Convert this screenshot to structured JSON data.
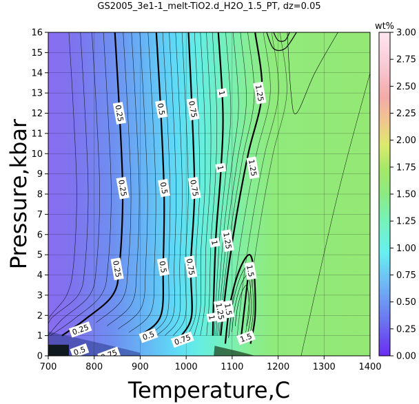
{
  "chart_data": {
    "type": "heatmap",
    "title": "GS2005_3e1-1_melt-TiO2.d_H2O_1.5_PT, dz=0.05",
    "xlabel": "Temperature,C",
    "ylabel": "Pressure,kbar",
    "xlim": [
      700,
      1400
    ],
    "ylim": [
      0,
      16
    ],
    "x_ticks": [
      "700",
      "800",
      "900",
      "1000",
      "1100",
      "1200",
      "1300",
      "1400"
    ],
    "y_ticks": [
      "0",
      "1",
      "2",
      "3",
      "4",
      "5",
      "6",
      "7",
      "8",
      "9",
      "10",
      "11",
      "12",
      "13",
      "14",
      "15",
      "16"
    ],
    "colorbar": {
      "label": "wt%",
      "range": [
        0,
        3
      ],
      "ticks": [
        "0.00",
        "0.25",
        "0.50",
        "0.75",
        "1.00",
        "1.25",
        "1.50",
        "1.75",
        "2.00",
        "2.25",
        "2.50",
        "2.75",
        "3.00"
      ]
    },
    "contour_interval": 0.05,
    "major_contours": [
      {
        "level": "0.25",
        "T_at_P": [
          [
            845,
            16
          ],
          [
            855,
            12
          ],
          [
            862,
            8
          ],
          [
            855,
            4.5
          ],
          [
            840,
            3
          ],
          [
            780,
            1.8
          ],
          [
            730,
            1
          ]
        ]
      },
      {
        "level": "0.5",
        "T_at_P": [
          [
            935,
            16
          ],
          [
            945,
            12
          ],
          [
            952,
            8
          ],
          [
            950,
            4.5
          ],
          [
            945,
            2
          ],
          [
            900,
            1
          ]
        ]
      },
      {
        "level": "0.75",
        "T_at_P": [
          [
            1005,
            16
          ],
          [
            1013,
            12
          ],
          [
            1018,
            8
          ],
          [
            1010,
            4.5
          ],
          [
            1012,
            2
          ],
          [
            990,
            1
          ]
        ]
      },
      {
        "level": "1",
        "T_at_P": [
          [
            1070,
            16
          ],
          [
            1080,
            12
          ],
          [
            1075,
            9
          ],
          [
            1065,
            6
          ],
          [
            1060,
            3
          ],
          [
            1058,
            1
          ]
        ]
      },
      {
        "level": "1.25",
        "T_at_P": [
          [
            1150,
            16
          ],
          [
            1165,
            13
          ],
          [
            1135,
            10
          ],
          [
            1110,
            7
          ],
          [
            1090,
            4
          ],
          [
            1075,
            1
          ]
        ]
      },
      {
        "level": "1.5",
        "T_at_P": [
          [
            1135,
            4
          ],
          [
            1125,
            2
          ],
          [
            1120,
            1
          ]
        ]
      }
    ],
    "contour_labels": [
      {
        "text": "0.25",
        "T": 855,
        "P": 12
      },
      {
        "text": "0.25",
        "T": 862,
        "P": 8.3
      },
      {
        "text": "0.25",
        "T": 850,
        "P": 4.3
      },
      {
        "text": "0.25",
        "T": 770,
        "P": 1.3
      },
      {
        "text": "0.5",
        "T": 946,
        "P": 12.2
      },
      {
        "text": "0.5",
        "T": 952,
        "P": 8.3
      },
      {
        "text": "0.5",
        "T": 950,
        "P": 4.4
      },
      {
        "text": "0.5",
        "T": 918,
        "P": 1.0
      },
      {
        "text": "0.5",
        "T": 768,
        "P": 0.25
      },
      {
        "text": "0.75",
        "T": 1015,
        "P": 12.2
      },
      {
        "text": "0.75",
        "T": 1018,
        "P": 8.3
      },
      {
        "text": "0.75",
        "T": 1010,
        "P": 4.4
      },
      {
        "text": "0.75",
        "T": 992,
        "P": 0.8
      },
      {
        "text": "0.75",
        "T": 832,
        "P": 0.05
      },
      {
        "text": "1",
        "T": 1078,
        "P": 13.0
      },
      {
        "text": "1",
        "T": 1075,
        "P": 9.3
      },
      {
        "text": "1",
        "T": 1062,
        "P": 5.6
      },
      {
        "text": "1",
        "T": 1056,
        "P": 1.9
      },
      {
        "text": "1.25",
        "T": 1160,
        "P": 13.0
      },
      {
        "text": "1.25",
        "T": 1145,
        "P": 9.3
      },
      {
        "text": "1.25",
        "T": 1090,
        "P": 5.7
      },
      {
        "text": "1.25",
        "T": 1074,
        "P": 2.2
      },
      {
        "text": "1.5",
        "T": 1140,
        "P": 4.2
      },
      {
        "text": "1.5",
        "T": 1092,
        "P": 2.3
      },
      {
        "text": "1.5",
        "T": 1130,
        "P": 0.9
      }
    ],
    "grid": true
  }
}
